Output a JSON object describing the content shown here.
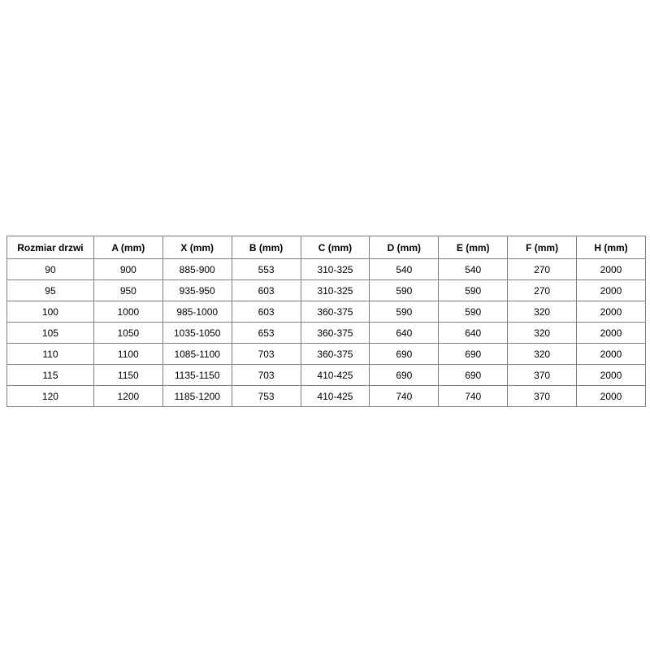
{
  "table": {
    "name": "door-size-specification",
    "columns": [
      "Rozmiar drzwi",
      "A (mm)",
      "X (mm)",
      "B (mm)",
      "C (mm)",
      "D (mm)",
      "E (mm)",
      "F (mm)",
      "H (mm)"
    ],
    "rows": [
      [
        "90",
        "900",
        "885-900",
        "553",
        "310-325",
        "540",
        "540",
        "270",
        "2000"
      ],
      [
        "95",
        "950",
        "935-950",
        "603",
        "310-325",
        "590",
        "590",
        "270",
        "2000"
      ],
      [
        "100",
        "1000",
        "985-1000",
        "603",
        "360-375",
        "590",
        "590",
        "320",
        "2000"
      ],
      [
        "105",
        "1050",
        "1035-1050",
        "653",
        "360-375",
        "640",
        "640",
        "320",
        "2000"
      ],
      [
        "110",
        "1100",
        "1085-1100",
        "703",
        "360-375",
        "690",
        "690",
        "320",
        "2000"
      ],
      [
        "115",
        "1150",
        "1135-1150",
        "703",
        "410-425",
        "690",
        "690",
        "370",
        "2000"
      ],
      [
        "120",
        "1200",
        "1185-1200",
        "753",
        "410-425",
        "740",
        "740",
        "370",
        "2000"
      ]
    ],
    "colors": {
      "border": "#808080",
      "text": "#000000",
      "background": "#ffffff"
    }
  }
}
